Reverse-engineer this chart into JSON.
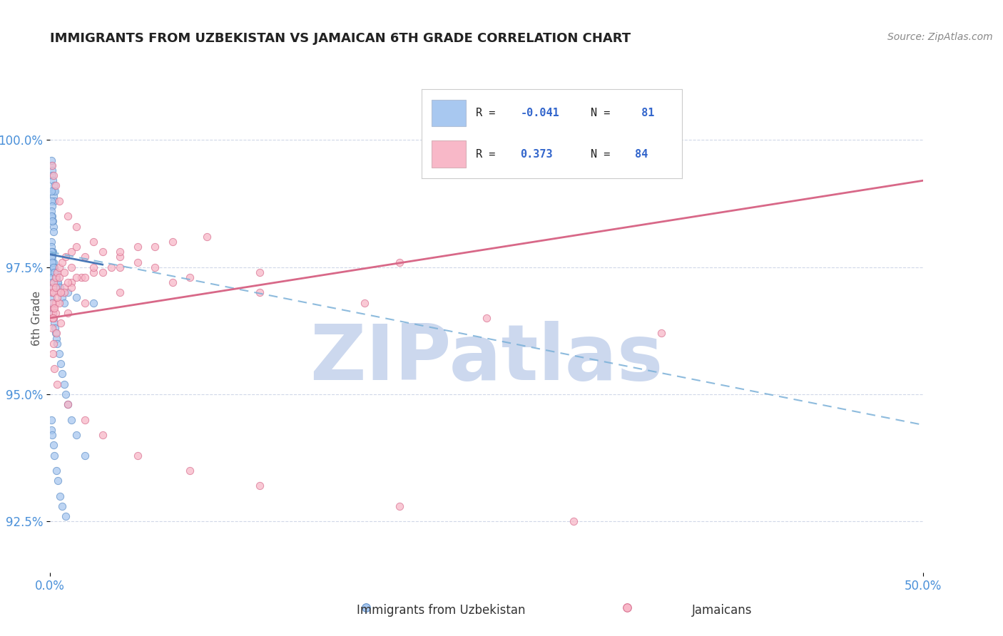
{
  "title": "IMMIGRANTS FROM UZBEKISTAN VS JAMAICAN 6TH GRADE CORRELATION CHART",
  "source_text": "Source: ZipAtlas.com",
  "ylabel": "6th Grade",
  "xlim": [
    0.0,
    50.0
  ],
  "ylim": [
    91.5,
    101.5
  ],
  "yticks": [
    92.5,
    95.0,
    97.5,
    100.0
  ],
  "xticks": [
    0.0,
    50.0
  ],
  "xtick_labels": [
    "0.0%",
    "50.0%"
  ],
  "ytick_labels": [
    "92.5%",
    "95.0%",
    "97.5%",
    "100.0%"
  ],
  "title_color": "#222222",
  "axis_color": "#4a90d9",
  "grid_color": "#d0d8e8",
  "watermark_text": "ZIPatlas",
  "watermark_color": "#ccd8ee",
  "legend_color1": "#a8c8f0",
  "legend_color2": "#f8b8c8",
  "series1_color": "#a8c8f0",
  "series1_edge": "#6090c8",
  "series2_color": "#f8b8c8",
  "series2_edge": "#d87090",
  "line1_solid_color": "#4878b8",
  "line1_dash_color": "#7ab0d8",
  "line2_color": "#d86888",
  "series1_label": "Immigrants from Uzbekistan",
  "series2_label": "Jamaicans",
  "legend_r1_text": "R = ",
  "legend_r1_val": "-0.041",
  "legend_n1_text": "N = ",
  "legend_n1_val": " 81",
  "legend_r2_text": "R =  ",
  "legend_r2_val": "0.373",
  "legend_n2_text": "N = ",
  "legend_n2_val": "84",
  "blue_x": [
    0.05,
    0.08,
    0.1,
    0.12,
    0.15,
    0.18,
    0.2,
    0.22,
    0.25,
    0.28,
    0.05,
    0.08,
    0.1,
    0.12,
    0.15,
    0.18,
    0.2,
    0.05,
    0.08,
    0.1,
    0.15,
    0.2,
    0.25,
    0.3,
    0.35,
    0.4,
    0.5,
    0.6,
    0.7,
    0.8,
    0.05,
    0.07,
    0.09,
    0.11,
    0.13,
    0.05,
    0.07,
    0.09,
    0.11,
    0.13,
    0.05,
    0.07,
    0.1,
    0.12,
    0.15,
    0.18,
    0.22,
    0.26,
    0.3,
    0.35,
    0.4,
    0.5,
    0.6,
    0.7,
    0.8,
    0.9,
    1.0,
    1.2,
    1.5,
    2.0,
    0.05,
    0.08,
    0.12,
    0.18,
    0.25,
    0.35,
    0.45,
    0.55,
    0.7,
    0.9,
    0.05,
    0.08,
    0.12,
    0.18,
    0.25,
    0.35,
    0.45,
    0.55,
    1.0,
    1.5,
    2.5
  ],
  "blue_y": [
    99.5,
    99.6,
    99.4,
    99.3,
    99.2,
    99.0,
    98.9,
    98.8,
    99.1,
    99.0,
    99.0,
    98.8,
    98.7,
    98.5,
    98.4,
    98.3,
    98.2,
    98.6,
    98.5,
    98.4,
    97.8,
    97.6,
    97.5,
    97.4,
    97.3,
    97.2,
    97.1,
    97.0,
    96.9,
    96.8,
    98.0,
    97.9,
    97.8,
    97.7,
    97.6,
    97.5,
    97.4,
    97.3,
    97.2,
    97.1,
    97.0,
    96.9,
    96.8,
    96.7,
    96.6,
    96.5,
    96.4,
    96.3,
    96.2,
    96.1,
    96.0,
    95.8,
    95.6,
    95.4,
    95.2,
    95.0,
    94.8,
    94.5,
    94.2,
    93.8,
    94.5,
    94.3,
    94.2,
    94.0,
    93.8,
    93.5,
    93.3,
    93.0,
    92.8,
    92.6,
    97.8,
    97.7,
    97.6,
    97.5,
    97.4,
    97.3,
    97.2,
    97.1,
    97.0,
    96.9,
    96.8
  ],
  "pink_x": [
    0.1,
    0.15,
    0.2,
    0.3,
    0.4,
    0.5,
    0.7,
    0.9,
    1.2,
    1.5,
    0.1,
    0.15,
    0.2,
    0.3,
    0.5,
    0.8,
    1.2,
    1.8,
    2.5,
    3.5,
    0.1,
    0.2,
    0.3,
    0.5,
    0.8,
    1.2,
    2.0,
    3.0,
    4.0,
    5.0,
    0.1,
    0.2,
    0.3,
    0.5,
    0.8,
    1.2,
    2.0,
    3.0,
    5.0,
    7.0,
    0.15,
    0.25,
    0.4,
    0.6,
    1.0,
    1.5,
    2.5,
    4.0,
    6.0,
    9.0,
    0.1,
    0.2,
    0.3,
    0.5,
    1.0,
    1.5,
    2.5,
    4.0,
    6.0,
    8.0,
    12.0,
    18.0,
    25.0,
    35.0,
    0.15,
    0.25,
    0.4,
    1.0,
    2.0,
    3.0,
    5.0,
    8.0,
    12.0,
    20.0,
    30.0,
    0.2,
    0.35,
    0.6,
    1.0,
    2.0,
    4.0,
    7.0,
    12.0,
    20.0
  ],
  "pink_y": [
    97.0,
    97.1,
    97.2,
    97.3,
    97.4,
    97.5,
    97.6,
    97.7,
    97.8,
    97.9,
    96.5,
    96.6,
    96.7,
    96.8,
    97.0,
    97.1,
    97.2,
    97.3,
    97.4,
    97.5,
    96.3,
    96.5,
    96.6,
    96.8,
    97.0,
    97.1,
    97.3,
    97.4,
    97.5,
    97.6,
    96.8,
    97.0,
    97.1,
    97.3,
    97.4,
    97.5,
    97.7,
    97.8,
    97.9,
    98.0,
    96.5,
    96.7,
    96.9,
    97.0,
    97.2,
    97.3,
    97.5,
    97.7,
    97.9,
    98.1,
    99.5,
    99.3,
    99.1,
    98.8,
    98.5,
    98.3,
    98.0,
    97.8,
    97.5,
    97.3,
    97.0,
    96.8,
    96.5,
    96.2,
    95.8,
    95.5,
    95.2,
    94.8,
    94.5,
    94.2,
    93.8,
    93.5,
    93.2,
    92.8,
    92.5,
    96.0,
    96.2,
    96.4,
    96.6,
    96.8,
    97.0,
    97.2,
    97.4,
    97.6
  ],
  "blue_line_solid_x0": 0.0,
  "blue_line_solid_x1": 3.0,
  "blue_line_solid_y0": 97.75,
  "blue_line_solid_y1": 97.55,
  "blue_line_dash_x0": 0.0,
  "blue_line_dash_x1": 50.0,
  "blue_line_dash_y0": 97.8,
  "blue_line_dash_y1": 94.4,
  "pink_line_x0": 0.0,
  "pink_line_x1": 50.0,
  "pink_line_y0": 96.5,
  "pink_line_y1": 99.2
}
